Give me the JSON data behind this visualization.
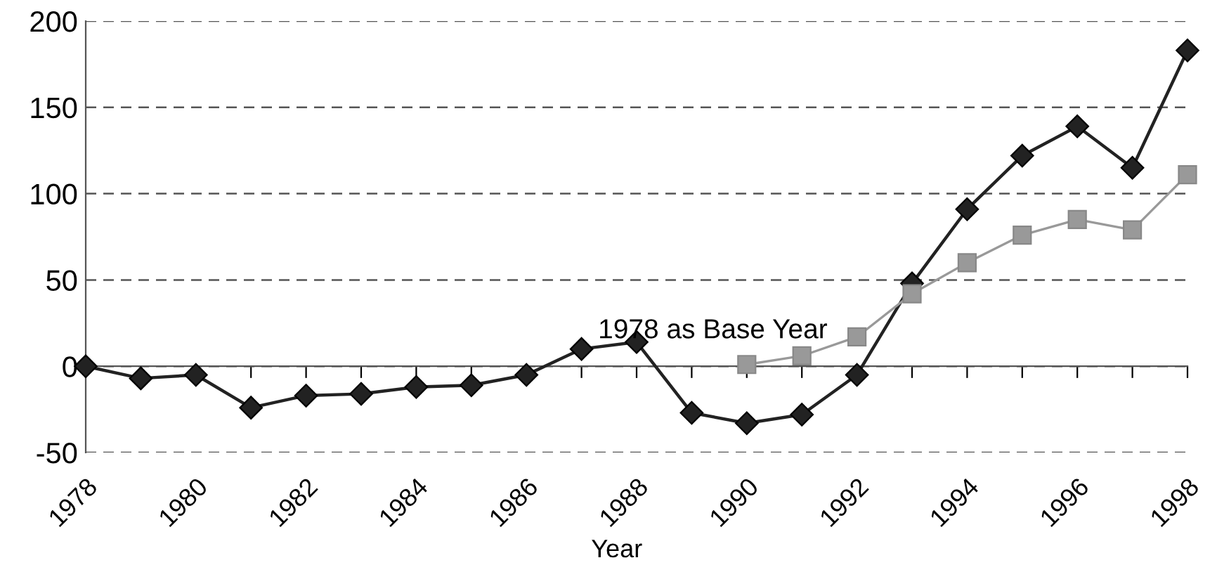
{
  "chart_data": {
    "type": "line",
    "xlabel": "Year",
    "categories": [
      "1978",
      null,
      "1980",
      null,
      "1982",
      null,
      "1984",
      null,
      "1986",
      null,
      "1988",
      null,
      "1990",
      null,
      "1992",
      null,
      "1994",
      null,
      "1996",
      null,
      "1998"
    ],
    "series": [
      {
        "color": "#222222",
        "marker": "diamond",
        "values": [
          0,
          -7,
          -5,
          -24,
          -17,
          -16,
          -12,
          -11,
          -5,
          10,
          14,
          -27,
          -33,
          -28,
          -5,
          48,
          91,
          122,
          139,
          115,
          183
        ]
      },
      {
        "color": "#999999",
        "marker": "square",
        "values": [
          null,
          null,
          null,
          null,
          null,
          null,
          null,
          null,
          null,
          null,
          null,
          null,
          1,
          6,
          17,
          42,
          60,
          76,
          85,
          79,
          111
        ]
      }
    ],
    "annotations": [
      "1978 as Base Year"
    ],
    "ylim": [
      -50,
      200
    ],
    "yticks": [
      -50,
      0,
      50,
      100,
      150,
      200
    ],
    "grid": "y",
    "line_style": "solid"
  }
}
